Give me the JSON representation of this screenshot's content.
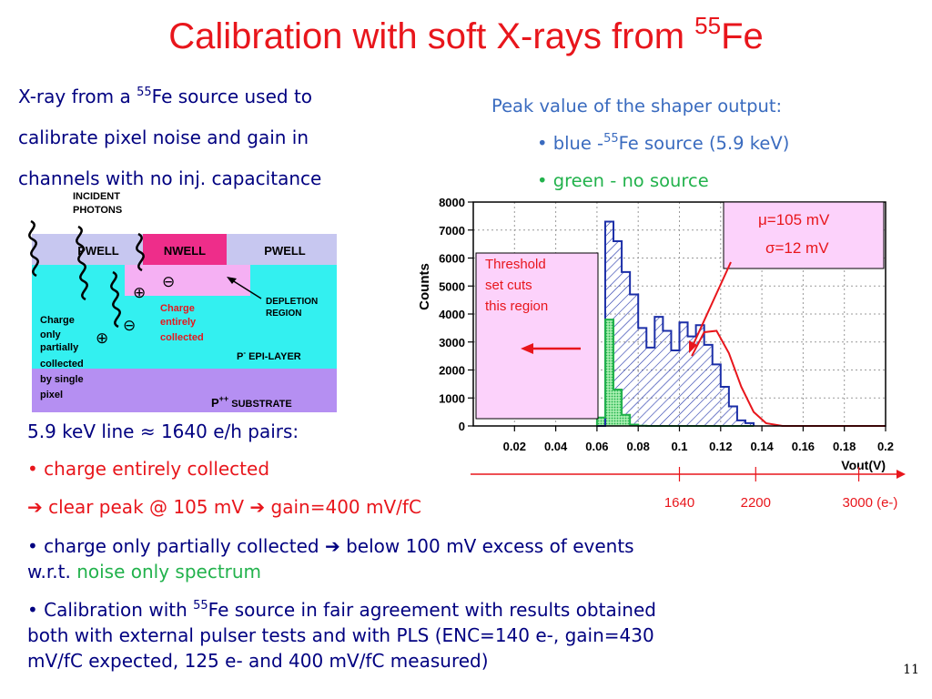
{
  "slide": {
    "title_main": "Calibration with soft X-rays from ",
    "title_sup": "55",
    "title_tail": "Fe",
    "page_number": "11"
  },
  "intro": {
    "l1a": "X-ray from a ",
    "l1sup": "55",
    "l1b": "Fe source used to",
    "l2": "calibrate pixel noise and gain in",
    "l3": "channels with no inj. capacitance"
  },
  "peak": {
    "heading": "Peak value of the shaper output:",
    "blue_a": "• blue -",
    "blue_sup": "55",
    "blue_b": "Fe source (5.9 keV)",
    "green": "• green - no source"
  },
  "diagram": {
    "incident_1": "INCIDENT",
    "incident_2": "PHOTONS",
    "pwell_left": "PWELL",
    "nwell": "NWELL",
    "pwell_right": "PWELL",
    "depletion_1": "DEPLETION",
    "depletion_2": "REGION",
    "charge_collected_1": "Charge",
    "charge_collected_2": "entirely",
    "charge_collected_3": "collected",
    "partial_1": "Charge",
    "partial_2": "only",
    "partial_3": "partially",
    "partial_4": "collected",
    "partial_5": "by single",
    "partial_6": "pixel",
    "epi_p": "P",
    "epi_sup": "-",
    "epi_rest": " EPI-LAYER",
    "sub_p": "P",
    "sub_sup": "++",
    "sub_rest": " SUBSTRATE",
    "minus": "⊖",
    "plus": "⊕"
  },
  "chart_data": {
    "type": "bar",
    "xlabel": "Vout(V)",
    "ylabel": "Counts",
    "xlim": [
      0.0,
      0.2
    ],
    "ylim": [
      0,
      8000
    ],
    "x_ticks": [
      "0.02",
      "0.04",
      "0.06",
      "0.08",
      "0.1",
      "0.12",
      "0.14",
      "0.16",
      "0.18",
      "0.2"
    ],
    "y_ticks": [
      "0",
      "1000",
      "2000",
      "3000",
      "4000",
      "5000",
      "6000",
      "7000",
      "8000"
    ],
    "bin_width": 0.004,
    "bin_start": 0.06,
    "series": [
      {
        "color": "#1c2fa8",
        "values": [
          0,
          7300,
          6600,
          5500,
          4700,
          3500,
          2800,
          3900,
          3400,
          2700,
          3700,
          3200,
          3600,
          2900,
          2200,
          1400,
          700,
          200,
          100
        ]
      },
      {
        "color": "#22b24c",
        "values": [
          300,
          3800,
          1300,
          400,
          50,
          10,
          0,
          0,
          0,
          0,
          0,
          0,
          0,
          0,
          0,
          0,
          0,
          0,
          0
        ]
      }
    ],
    "fit": {
      "color": "#e8161c",
      "points": [
        [
          0.106,
          2500
        ],
        [
          0.112,
          3350
        ],
        [
          0.118,
          3400
        ],
        [
          0.124,
          2600
        ],
        [
          0.13,
          1400
        ],
        [
          0.136,
          500
        ],
        [
          0.142,
          100
        ],
        [
          0.15,
          0
        ],
        [
          0.2,
          0
        ]
      ]
    },
    "annotations": {
      "mu": "μ=105 mV",
      "sigma": "σ=12 mV",
      "threshold_1": "Threshold",
      "threshold_2": "set cuts",
      "threshold_3": "this region"
    },
    "electron_scale": [
      {
        "value": 0.1,
        "label": "1640"
      },
      {
        "value": 0.137,
        "label": "2200"
      },
      {
        "value": 0.187,
        "label": "3000 (e-)"
      }
    ]
  },
  "notes": {
    "line_keV": "5.9 keV line ≈ 1640 e/h pairs:",
    "b1": "• charge entirely collected",
    "b2": "➔ clear peak @ 105 mV ➔ gain=400 mV/fC",
    "b3": "• charge only partially collected ➔ below 100 mV excess of events",
    "b3b_a": "w.r.t. ",
    "b3b_b": "noise only spectrum",
    "b4a_a": "• Calibration with ",
    "b4a_sup": "55",
    "b4a_b": "Fe source in fair agreement with results obtained",
    "b4b": "both with external pulser tests and with PLS (ENC=140 e-, gain=430",
    "b4c": "mV/fC expected, 125 e- and 400 mV/fC measured)"
  }
}
